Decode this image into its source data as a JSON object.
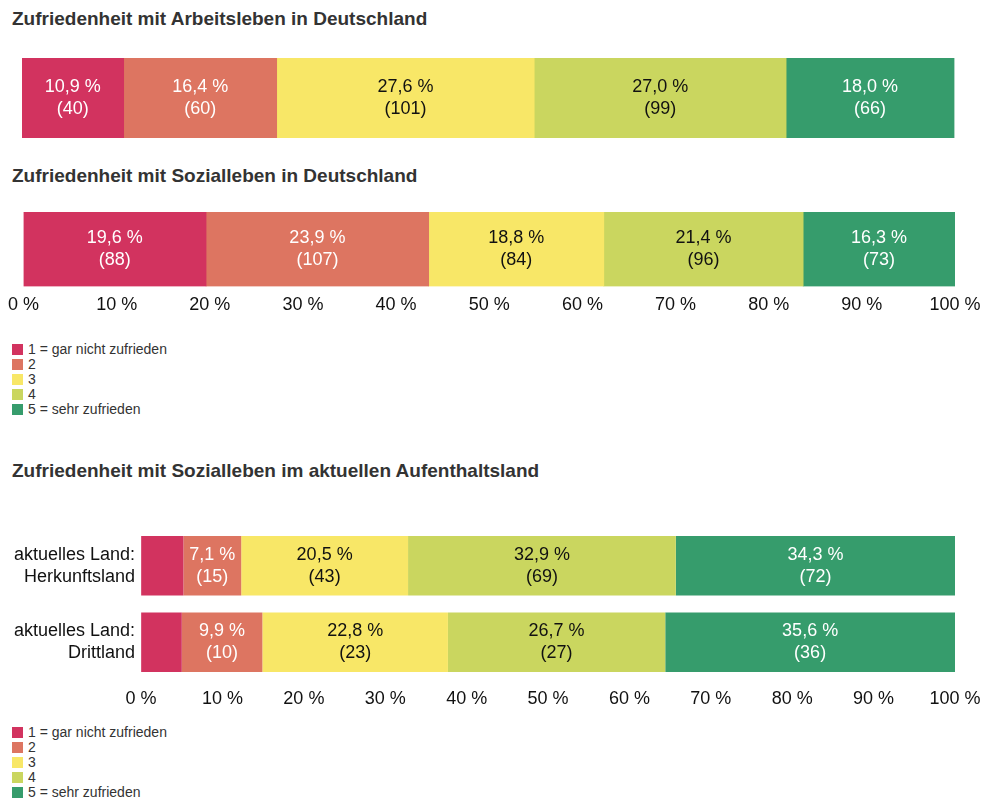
{
  "chart_data": [
    {
      "type": "bar",
      "orientation": "horizontal",
      "stacked": true,
      "data_labels": true,
      "title": "Zufriedenheit mit Arbeitsleben in Deutschland",
      "categories": [
        null
      ],
      "xlim": [
        0,
        100
      ],
      "tick_labels": false,
      "grid": false,
      "series": [
        {
          "color": "#d2335f",
          "values": [
            10.9
          ],
          "value_labels": [
            "10,9 %\n(40)"
          ]
        },
        {
          "color": "#dd7561",
          "values": [
            16.4
          ],
          "value_labels": [
            "16,4 %\n(60)"
          ]
        },
        {
          "color": "#f8e767",
          "values": [
            27.6
          ],
          "value_labels": [
            "27,6 %\n(101)"
          ]
        },
        {
          "color": "#cad65f",
          "values": [
            27.0
          ],
          "value_labels": [
            "27,0 %\n(99)"
          ]
        },
        {
          "color": "#369c6c",
          "values": [
            18.0
          ],
          "value_labels": [
            "18,0 %\n(66)"
          ]
        }
      ]
    },
    {
      "type": "bar",
      "orientation": "horizontal",
      "stacked": true,
      "data_labels": true,
      "title": "Zufriedenheit mit Sozialleben in Deutschland",
      "categories": [
        null
      ],
      "xlim": [
        0,
        100
      ],
      "xticks": [
        {
          "value": 0,
          "label": "0 %"
        },
        {
          "value": 10,
          "label": "10 %"
        },
        {
          "value": 20,
          "label": "20 %"
        },
        {
          "value": 30,
          "label": "30 %"
        },
        {
          "value": 40,
          "label": "40 %"
        },
        {
          "value": 50,
          "label": "50 %"
        },
        {
          "value": 60,
          "label": "60 %"
        },
        {
          "value": 70,
          "label": "70 %"
        },
        {
          "value": 80,
          "label": "80 %"
        },
        {
          "value": 90,
          "label": "90 %"
        },
        {
          "value": 100,
          "label": "100 %"
        }
      ],
      "tick_labels": "x",
      "grid": false,
      "legend": "bottom",
      "series": [
        {
          "name": "1 = gar nicht zufrieden",
          "color": "#d2335f",
          "values": [
            19.6
          ],
          "value_labels": [
            "19,6 %\n(88)"
          ]
        },
        {
          "name": "2",
          "color": "#dd7561",
          "values": [
            23.9
          ],
          "value_labels": [
            "23,9 %\n(107)"
          ]
        },
        {
          "name": "3",
          "color": "#f8e767",
          "values": [
            18.8
          ],
          "value_labels": [
            "18,8 %\n(84)"
          ]
        },
        {
          "name": "4",
          "color": "#cad65f",
          "values": [
            21.4
          ],
          "value_labels": [
            "21,4 %\n(96)"
          ]
        },
        {
          "name": "5 = sehr zufrieden",
          "color": "#369c6c",
          "values": [
            16.3
          ],
          "value_labels": [
            "16,3 %\n(73)"
          ]
        }
      ]
    },
    {
      "type": "bar",
      "orientation": "horizontal",
      "stacked": true,
      "data_labels": true,
      "title": "Zufriedenheit mit Sozialleben im aktuellen Aufenthaltsland",
      "categories": [
        "aktuelles Land:\nHerkunftsland",
        "aktuelles Land:\nDrittland"
      ],
      "xlim": [
        0,
        100
      ],
      "xticks": [
        {
          "value": 0,
          "label": "0 %"
        },
        {
          "value": 10,
          "label": "10 %"
        },
        {
          "value": 20,
          "label": "20 %"
        },
        {
          "value": 30,
          "label": "30 %"
        },
        {
          "value": 40,
          "label": "40 %"
        },
        {
          "value": 50,
          "label": "50 %"
        },
        {
          "value": 60,
          "label": "60 %"
        },
        {
          "value": 70,
          "label": "70 %"
        },
        {
          "value": 80,
          "label": "80 %"
        },
        {
          "value": 90,
          "label": "90 %"
        },
        {
          "value": 100,
          "label": "100 %"
        }
      ],
      "grid": false,
      "legend": "bottom",
      "series": [
        {
          "name": "1 = gar nicht zufrieden",
          "color": "#d2335f",
          "values": [
            5.2,
            5.0
          ],
          "value_labels": [
            null,
            null
          ]
        },
        {
          "name": "2",
          "color": "#dd7561",
          "values": [
            7.1,
            9.9
          ],
          "value_labels": [
            "7,1 %\n(15)",
            "9,9 %\n(10)"
          ]
        },
        {
          "name": "3",
          "color": "#f8e767",
          "values": [
            20.5,
            22.8
          ],
          "value_labels": [
            "20,5 %\n(43)",
            "22,8 %\n(23)"
          ]
        },
        {
          "name": "4",
          "color": "#cad65f",
          "values": [
            32.9,
            26.7
          ],
          "value_labels": [
            "32,9 %\n(69)",
            "26,7 %\n(27)"
          ]
        },
        {
          "name": "5 = sehr zufrieden",
          "color": "#369c6c",
          "values": [
            34.3,
            35.6
          ],
          "value_labels": [
            "34,3 %\n(72)",
            "35,6 %\n(36)"
          ]
        }
      ]
    }
  ]
}
